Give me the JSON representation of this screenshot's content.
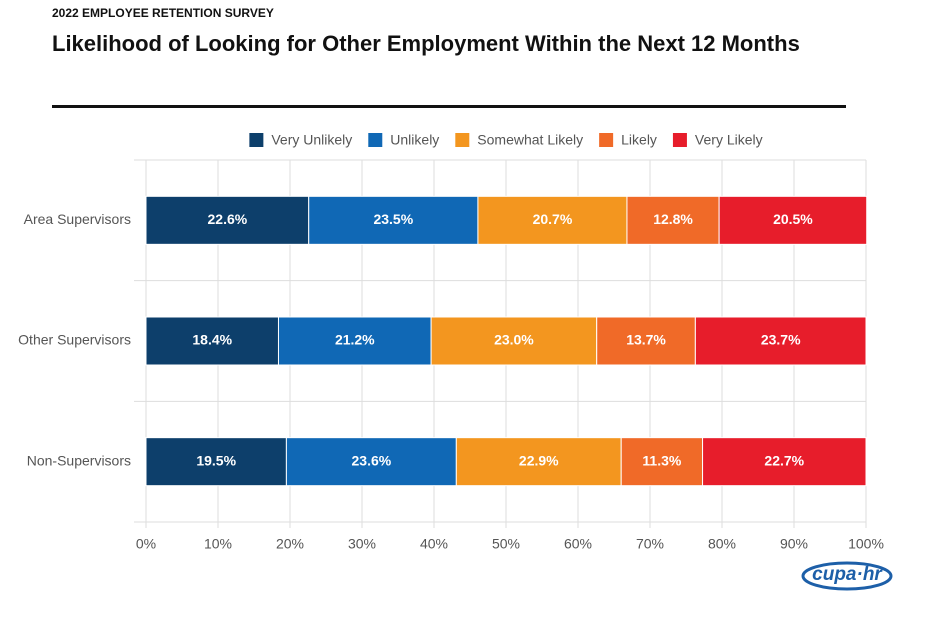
{
  "chart_data": {
    "type": "stacked-bar-horizontal",
    "supertitle": "2022 EMPLOYEE RETENTION SURVEY",
    "title": "Likelihood of Looking for Other Employment Within the Next 12 Months",
    "categories": [
      "Area Supervisors",
      "Other Supervisors",
      "Non-Supervisors"
    ],
    "series": [
      {
        "name": "Very Unlikely",
        "color": "#0d3f6b",
        "values": [
          22.6,
          18.4,
          19.5
        ],
        "value_labels": [
          "22.6%",
          "18.4%",
          "19.5%"
        ]
      },
      {
        "name": "Unlikely",
        "color": "#1068b5",
        "values": [
          23.5,
          21.2,
          23.6
        ],
        "value_labels": [
          "23.5%",
          "21.2%",
          "23.6%"
        ]
      },
      {
        "name": "Somewhat Likely",
        "color": "#f3961f",
        "values": [
          20.7,
          23.0,
          22.9
        ],
        "value_labels": [
          "20.7%",
          "23.0%",
          "22.9%"
        ]
      },
      {
        "name": "Likely",
        "color": "#f06a28",
        "values": [
          12.8,
          13.7,
          11.3
        ],
        "value_labels": [
          "12.8%",
          "13.7%",
          "11.3%"
        ]
      },
      {
        "name": "Very Likely",
        "color": "#e71d2b",
        "values": [
          20.5,
          23.7,
          22.7
        ],
        "value_labels": [
          "20.5%",
          "23.7%",
          "22.7%"
        ]
      }
    ],
    "xlim": [
      0,
      100
    ],
    "xticks": [
      {
        "value": 0,
        "label": "0%"
      },
      {
        "value": 10,
        "label": "10%"
      },
      {
        "value": 20,
        "label": "20%"
      },
      {
        "value": 30,
        "label": "30%"
      },
      {
        "value": 40,
        "label": "40%"
      },
      {
        "value": 50,
        "label": "50%"
      },
      {
        "value": 60,
        "label": "60%"
      },
      {
        "value": 70,
        "label": "70%"
      },
      {
        "value": 80,
        "label": "80%"
      },
      {
        "value": 90,
        "label": "90%"
      },
      {
        "value": 100,
        "label": "100%"
      }
    ],
    "grid": true,
    "legend": "top",
    "logo": "cupa·hr"
  }
}
